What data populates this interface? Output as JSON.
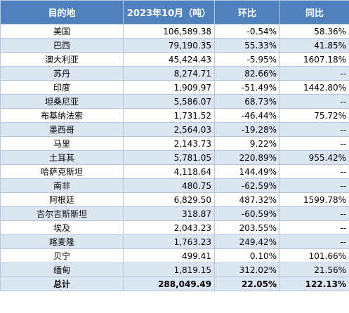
{
  "table": {
    "header": [
      "目的地",
      "2023年10月（吨）",
      "环比",
      "同比"
    ],
    "rows": [
      [
        "美国",
        "106,589.38",
        "-0.54%",
        "58.36%"
      ],
      [
        "巴西",
        "79,190.35",
        "55.33%",
        "41.85%"
      ],
      [
        "澳大利亚",
        "45,424.43",
        "-5.95%",
        "1607.18%"
      ],
      [
        "苏丹",
        "8,274.71",
        "82.66%",
        "--"
      ],
      [
        "印度",
        "1,909.97",
        "-51.49%",
        "1442.80%"
      ],
      [
        "坦桑尼亚",
        "5,586.07",
        "68.73%",
        "--"
      ],
      [
        "布基纳法索",
        "1,731.52",
        "-46.44%",
        "75.72%"
      ],
      [
        "墨西哥",
        "2,564.03",
        "-19.28%",
        "--"
      ],
      [
        "马里",
        "2,143.73",
        "9.22%",
        "--"
      ],
      [
        "土耳其",
        "5,781.05",
        "220.89%",
        "955.42%"
      ],
      [
        "哈萨克斯坦",
        "4,118.64",
        "144.49%",
        "--"
      ],
      [
        "南非",
        "480.75",
        "-62.59%",
        "--"
      ],
      [
        "阿根廷",
        "6,829.50",
        "487.32%",
        "1599.78%"
      ],
      [
        "吉尔吉斯斯坦",
        "318.87",
        "-60.59%",
        "--"
      ],
      [
        "埃及",
        "2,043.23",
        "203.55%",
        "--"
      ],
      [
        "喀麦隆",
        "1,763.23",
        "249.42%",
        "--"
      ],
      [
        "贝宁",
        "499.41",
        "0.10%",
        "101.66%"
      ],
      [
        "缅甸",
        "1,819.15",
        "312.02%",
        "21.56%"
      ]
    ],
    "total": [
      "总计",
      "288,049.49",
      "22.05%",
      "122.13%"
    ]
  }
}
